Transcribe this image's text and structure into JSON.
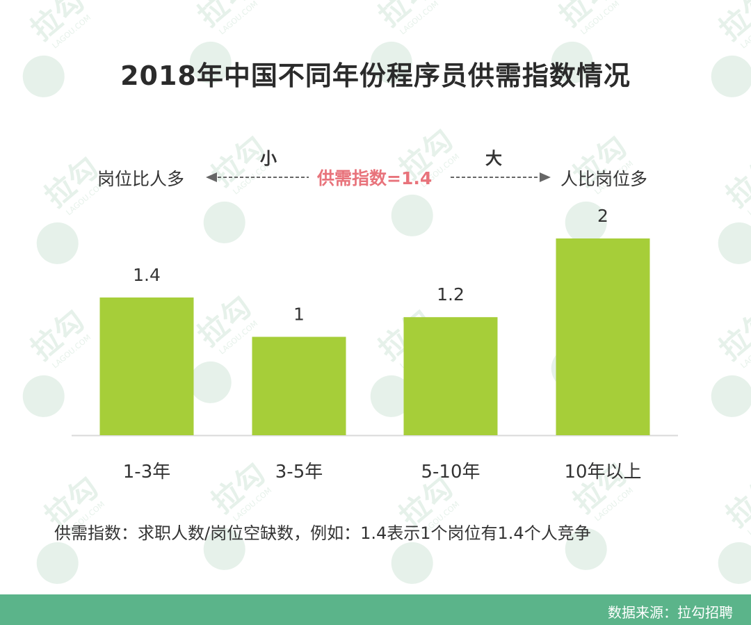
{
  "watermark": {
    "brand": "拉勾",
    "domain": "LAGOU.COM"
  },
  "title": "2018年中国不同年份程序员供需指数情况",
  "legend": {
    "left_label": "岗位比人多",
    "small_label": "小",
    "center_label": "供需指数=1.4",
    "big_label": "大",
    "right_label": "人比岗位多"
  },
  "chart_data": {
    "type": "bar",
    "title": "2018年中国不同年份程序员供需指数情况",
    "categories": [
      "1-3年",
      "3-5年",
      "5-10年",
      "10年以上"
    ],
    "values": [
      1.4,
      1,
      1.2,
      2
    ],
    "value_labels": [
      "1.4",
      "1",
      "1.2",
      "2"
    ],
    "ylim": [
      0,
      2.2
    ],
    "grid": false,
    "legend": "none",
    "xlabel": "",
    "ylabel": ""
  },
  "footnote": "供需指数：求职人数/岗位空缺数，例如：1.4表示1个岗位有1.4个人竞争",
  "footer": {
    "source": "数据来源：拉勾招聘"
  },
  "colors": {
    "bar": "#a6ce39",
    "accent": "#e8737b",
    "footer": "#5bb48a",
    "watermark": "#e6f1ea"
  }
}
